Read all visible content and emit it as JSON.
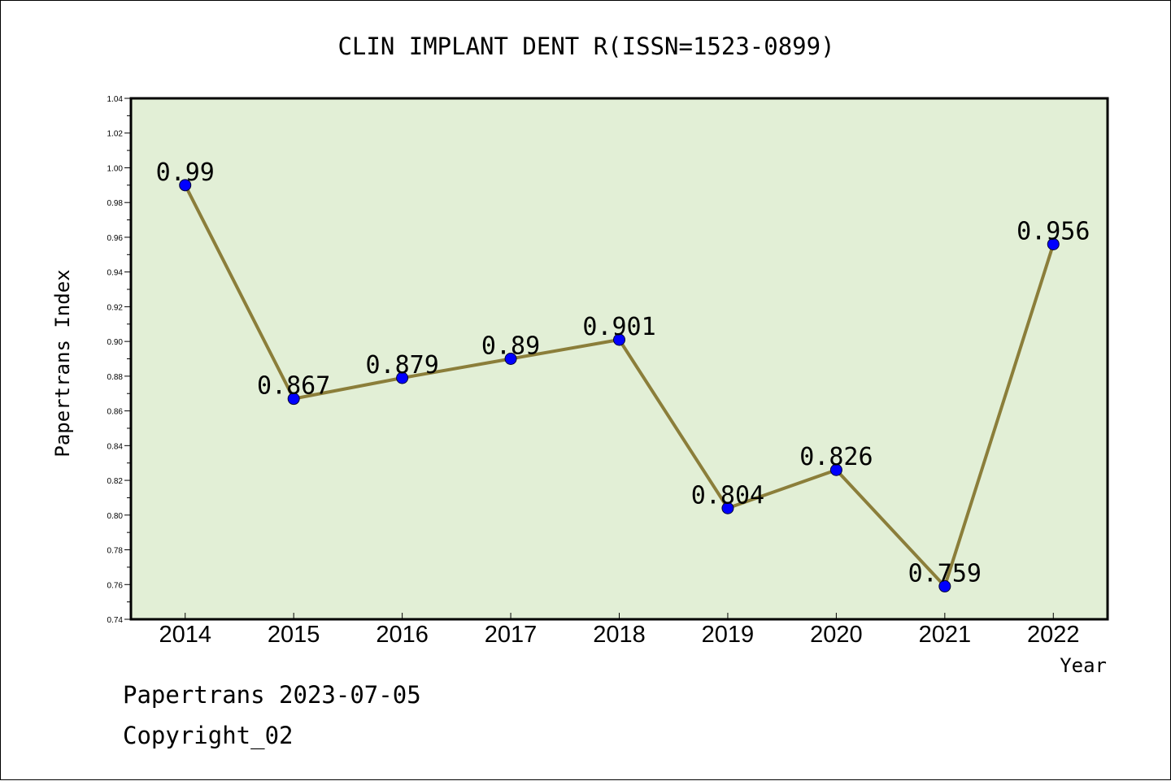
{
  "chart_data": {
    "type": "line",
    "title": "CLIN IMPLANT DENT R(ISSN=1523-0899)",
    "xlabel": "Year",
    "ylabel": "Papertrans Index",
    "categories": [
      "2014",
      "2015",
      "2016",
      "2017",
      "2018",
      "2019",
      "2020",
      "2021",
      "2022"
    ],
    "series": [
      {
        "values": [
          0.99,
          0.867,
          0.879,
          0.89,
          0.901,
          0.804,
          0.826,
          0.759,
          0.956
        ]
      }
    ],
    "data_labels": [
      "0.99",
      "0.867",
      "0.879",
      "0.89",
      "0.901",
      "0.804",
      "0.826",
      "0.759",
      "0.956"
    ],
    "ylim": [
      0.74,
      1.04
    ],
    "y_ticks": [
      "0.74",
      "0.76",
      "0.78",
      "0.80",
      "0.82",
      "0.84",
      "0.86",
      "0.88",
      "0.90",
      "0.92",
      "0.94",
      "0.96",
      "0.98",
      "1.00",
      "1.02",
      "1.04"
    ],
    "grid": false,
    "colors": {
      "plot_background": "#e2efd6",
      "line": "#8b7e3a",
      "marker": "#0000ff"
    }
  },
  "footer": {
    "line1": "Papertrans 2023-07-05",
    "line2": "Copyright_02"
  }
}
